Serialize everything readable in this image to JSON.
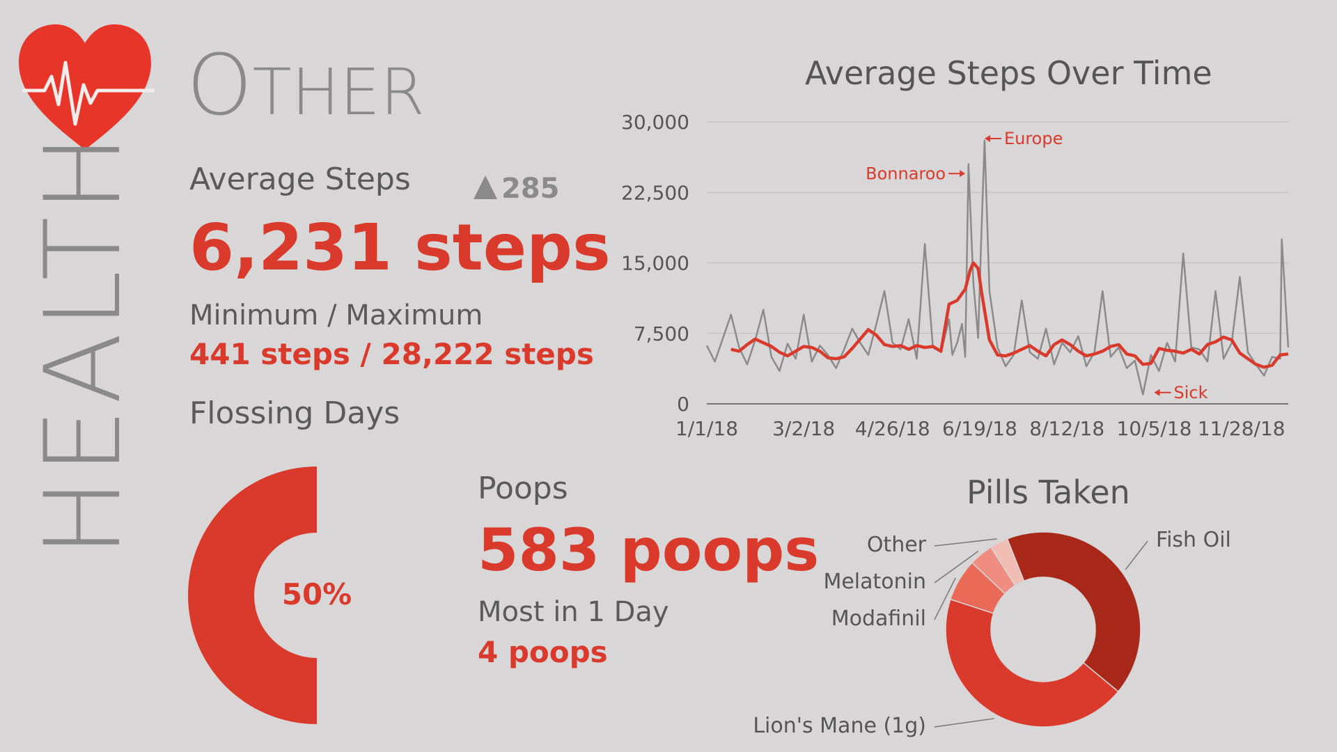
{
  "colors": {
    "accent": "#d93a2b",
    "gray": "#8a8a8a",
    "background": "#d8d6d7",
    "darkred": "#a8291a"
  },
  "vertical_title": "HEALTH",
  "section_title": {
    "cap": "O",
    "rest": "THER"
  },
  "steps": {
    "label": "Average Steps",
    "delta": "285",
    "delta_direction": "up",
    "value": "6,231 steps",
    "minmax_label": "Minimum / Maximum",
    "minmax_value": "441 steps / 28,222 steps"
  },
  "flossing": {
    "label": "Flossing Days",
    "percent_text": "50%",
    "percent": 0.5
  },
  "poops": {
    "label": "Poops",
    "value": "583 poops",
    "most_label": "Most in 1 Day",
    "most_value": "4 poops"
  },
  "chart_data": [
    {
      "type": "line",
      "title": "Average Steps Over Time",
      "xlabel": "",
      "ylabel": "",
      "ylim": [
        0,
        30000
      ],
      "yticks": [
        "0",
        "7,500",
        "15,000",
        "22,500",
        "30,000"
      ],
      "ytick_values": [
        0,
        7500,
        15000,
        22500,
        30000
      ],
      "xticks": [
        "1/1/18",
        "3/2/18",
        "4/26/18",
        "6/19/18",
        "8/12/18",
        "10/5/18",
        "11/28/18"
      ],
      "xtick_days": [
        0,
        60,
        115,
        169,
        223,
        277,
        331
      ],
      "grid": true,
      "series": [
        {
          "color": "#8a8a8a",
          "x": [
            0,
            5,
            10,
            15,
            20,
            25,
            30,
            35,
            40,
            45,
            50,
            55,
            60,
            65,
            70,
            75,
            80,
            85,
            90,
            95,
            100,
            105,
            110,
            115,
            120,
            125,
            130,
            135,
            140,
            145,
            150,
            152,
            155,
            158,
            160,
            162,
            165,
            168,
            170,
            172,
            175,
            180,
            185,
            190,
            195,
            200,
            205,
            210,
            215,
            220,
            225,
            230,
            235,
            240,
            245,
            250,
            255,
            260,
            265,
            270,
            275,
            280,
            285,
            290,
            295,
            300,
            305,
            310,
            315,
            320,
            325,
            330,
            335,
            340,
            345,
            350,
            355,
            356,
            360
          ],
          "values": [
            6200,
            4500,
            7000,
            9500,
            6000,
            4200,
            6800,
            10000,
            5000,
            3500,
            6400,
            4800,
            9500,
            4500,
            6200,
            5200,
            3800,
            5800,
            8000,
            6500,
            5200,
            8500,
            12000,
            6500,
            5800,
            9000,
            4800,
            17000,
            6000,
            5500,
            9000,
            5200,
            6500,
            8500,
            5000,
            25500,
            13000,
            7000,
            18000,
            28000,
            12000,
            6000,
            4000,
            5200,
            11000,
            5500,
            4800,
            8000,
            4200,
            6500,
            5500,
            7200,
            4000,
            5500,
            12000,
            5000,
            6000,
            3800,
            4600,
            1000,
            5200,
            3500,
            6500,
            4500,
            16000,
            6000,
            5800,
            4500,
            12000,
            4800,
            6500,
            13500,
            5500,
            4200,
            3000,
            5000,
            4800,
            17500,
            6000
          ]
        },
        {
          "color": "#d93a2b",
          "x": [
            15,
            20,
            25,
            30,
            35,
            40,
            45,
            50,
            55,
            60,
            65,
            70,
            75,
            80,
            85,
            90,
            95,
            100,
            105,
            110,
            115,
            120,
            125,
            130,
            135,
            140,
            145,
            150,
            155,
            160,
            163,
            165,
            168,
            170,
            175,
            180,
            185,
            190,
            195,
            200,
            205,
            210,
            215,
            220,
            225,
            230,
            235,
            240,
            245,
            250,
            255,
            260,
            265,
            270,
            275,
            280,
            285,
            290,
            295,
            300,
            305,
            310,
            315,
            320,
            325,
            330,
            335,
            340,
            345,
            350,
            355,
            360
          ],
          "values": [
            5800,
            5600,
            6300,
            6900,
            6500,
            6100,
            5500,
            5100,
            5600,
            6100,
            6000,
            5600,
            4900,
            4800,
            5000,
            5900,
            6900,
            7900,
            7300,
            6300,
            6100,
            6200,
            5800,
            6200,
            6000,
            6100,
            5600,
            10600,
            11000,
            12200,
            14200,
            15000,
            14400,
            12000,
            6800,
            5200,
            5100,
            5400,
            5800,
            6200,
            5600,
            5100,
            6300,
            6800,
            6300,
            5600,
            5100,
            5300,
            5600,
            6100,
            6300,
            5300,
            5100,
            4200,
            4300,
            5900,
            5700,
            5600,
            5400,
            5800,
            5300,
            6300,
            6600,
            7100,
            6800,
            5400,
            4800,
            4200,
            3900,
            4100,
            5200,
            5300
          ]
        }
      ],
      "annotations": [
        {
          "text": "Europe",
          "x": 172,
          "y": 28222,
          "arrow": "left"
        },
        {
          "text": "Bonnaroo",
          "x": 160,
          "y": 24500,
          "arrow": "right"
        },
        {
          "text": "Sick",
          "x": 277,
          "y": 1200,
          "arrow": "left"
        }
      ]
    },
    {
      "type": "pie",
      "donut": true,
      "title": "Pills Taken",
      "slices": [
        {
          "label": "Fish Oil",
          "value": 42,
          "color": "#a8291a"
        },
        {
          "label": "Lion's Mane (1g)",
          "value": 44,
          "color": "#d93a2b"
        },
        {
          "label": "Modafinil",
          "value": 7,
          "color": "#e86a57"
        },
        {
          "label": "Melatonin",
          "value": 4,
          "color": "#ef8d80"
        },
        {
          "label": "Other",
          "value": 3,
          "color": "#f0bcb4"
        }
      ]
    }
  ]
}
